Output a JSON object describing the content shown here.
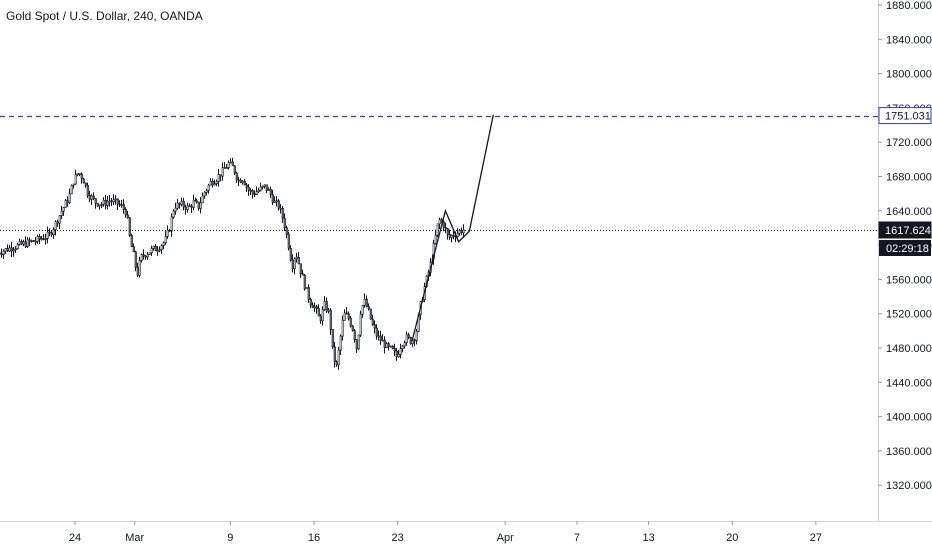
{
  "chart_data": {
    "type": "candlestick",
    "title": "Gold Spot / U.S. Dollar, 240, OANDA",
    "symbol": "Gold Spot / U.S. Dollar",
    "interval": "240",
    "source": "OANDA",
    "ylim": [
      1280,
      1900
    ],
    "y_ticks": [
      "1880.000",
      "1840.000",
      "1800.000",
      "1760.000",
      "1720.000",
      "1680.000",
      "1640.000",
      "1600.000",
      "1560.000",
      "1520.000",
      "1480.000",
      "1440.000",
      "1400.000",
      "1360.000",
      "1320.000"
    ],
    "x_ticks": [
      {
        "label": "24",
        "day": 24
      },
      {
        "label": "Mar",
        "day": 29
      },
      {
        "label": "9",
        "day": 37
      },
      {
        "label": "16",
        "day": 44
      },
      {
        "label": "23",
        "day": 51
      },
      {
        "label": "Apr",
        "day": 60
      },
      {
        "label": "7",
        "day": 66
      },
      {
        "label": "13",
        "day": 72
      },
      {
        "label": "20",
        "day": 79
      },
      {
        "label": "27",
        "day": 86
      }
    ],
    "x_range_days": [
      17.5,
      89.5
    ],
    "day_axis_note": "",
    "price_path": [
      [
        17.5,
        1590
      ],
      [
        18,
        1593
      ],
      [
        19,
        1598
      ],
      [
        20,
        1602
      ],
      [
        21,
        1606
      ],
      [
        22,
        1612
      ],
      [
        22.5,
        1625
      ],
      [
        23,
        1640
      ],
      [
        23.6,
        1655
      ],
      [
        24,
        1675
      ],
      [
        24.4,
        1685
      ],
      [
        24.8,
        1677
      ],
      [
        25.2,
        1660
      ],
      [
        25.8,
        1650
      ],
      [
        26.4,
        1648
      ],
      [
        27,
        1652
      ],
      [
        27.6,
        1649
      ],
      [
        28,
        1645
      ],
      [
        28.4,
        1638
      ],
      [
        28.7,
        1606
      ],
      [
        29,
        1588
      ],
      [
        29.3,
        1565
      ],
      [
        29.6,
        1585
      ],
      [
        30,
        1590
      ],
      [
        30.5,
        1594
      ],
      [
        31,
        1597
      ],
      [
        31.6,
        1604
      ],
      [
        32,
        1620
      ],
      [
        32.4,
        1646
      ],
      [
        33,
        1647
      ],
      [
        33.6,
        1643
      ],
      [
        34,
        1650
      ],
      [
        34.5,
        1645
      ],
      [
        35,
        1662
      ],
      [
        35.5,
        1673
      ],
      [
        36,
        1678
      ],
      [
        36.5,
        1686
      ],
      [
        37,
        1695
      ],
      [
        37.4,
        1690
      ],
      [
        37.8,
        1675
      ],
      [
        38.2,
        1678
      ],
      [
        38.6,
        1665
      ],
      [
        39,
        1660
      ],
      [
        39.5,
        1664
      ],
      [
        40,
        1668
      ],
      [
        40.4,
        1662
      ],
      [
        40.8,
        1650
      ],
      [
        41.2,
        1645
      ],
      [
        41.6,
        1628
      ],
      [
        42,
        1600
      ],
      [
        42.3,
        1575
      ],
      [
        42.6,
        1592
      ],
      [
        43,
        1570
      ],
      [
        43.4,
        1550
      ],
      [
        43.8,
        1534
      ],
      [
        44.2,
        1527
      ],
      [
        44.6,
        1512
      ],
      [
        45,
        1530
      ],
      [
        45.4,
        1520
      ],
      [
        45.7,
        1472
      ],
      [
        46,
        1458
      ],
      [
        46.3,
        1490
      ],
      [
        46.6,
        1520
      ],
      [
        47,
        1515
      ],
      [
        47.4,
        1500
      ],
      [
        47.7,
        1478
      ],
      [
        48,
        1523
      ],
      [
        48.3,
        1535
      ],
      [
        48.6,
        1525
      ],
      [
        49,
        1506
      ],
      [
        49.4,
        1493
      ],
      [
        49.8,
        1488
      ],
      [
        50.2,
        1480
      ],
      [
        50.6,
        1478
      ],
      [
        51,
        1470
      ],
      [
        51.4,
        1485
      ],
      [
        51.8,
        1492
      ],
      [
        52.2,
        1488
      ],
      [
        52.6,
        1495
      ],
      [
        53,
        1530
      ],
      [
        53.4,
        1555
      ],
      [
        53.8,
        1575
      ],
      [
        54.2,
        1600
      ],
      [
        54.6,
        1630
      ],
      [
        55,
        1624
      ],
      [
        55.4,
        1608
      ],
      [
        55.8,
        1612
      ],
      [
        56.2,
        1615
      ],
      [
        56.6,
        1618
      ]
    ],
    "lines": [
      {
        "type": "horizontal",
        "style": "dashed",
        "price": 1751.031,
        "label": "1751.031",
        "color": "#2e3bd9"
      },
      {
        "type": "horizontal",
        "style": "dotted",
        "price": 1617.624,
        "label": "1617.624",
        "color": "#131722"
      }
    ],
    "drawing": [
      [
        52.2,
        1488
      ],
      [
        55,
        1640
      ],
      [
        56.1,
        1604
      ],
      [
        57,
        1616
      ],
      [
        59,
        1752
      ]
    ],
    "current_price": "1617.624",
    "countdown": "02:29:18",
    "colors": {
      "up": "#ffffff",
      "down": "#787b86",
      "wick": "#131722",
      "blue": "#2e3bd9"
    }
  }
}
